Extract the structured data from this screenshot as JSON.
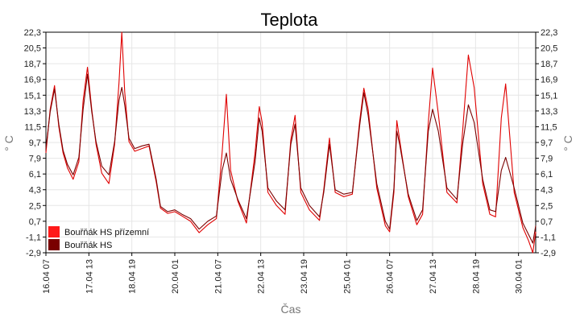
{
  "chart_data": {
    "type": "line",
    "title": "Teplota",
    "xlabel": "Čas",
    "ylabel": "° C",
    "ylabel_right": "° C",
    "ylim": [
      -2.9,
      22.3
    ],
    "yticks": [
      "22,3",
      "20,5",
      "18,7",
      "16,9",
      "15,1",
      "13,3",
      "11,5",
      "9,7",
      "7,9",
      "6,1",
      "4,3",
      "2,5",
      "0,7",
      "-1,1",
      "-2,9"
    ],
    "xlim": [
      "2013-04-16 07:00",
      "2013-04-30 13:00"
    ],
    "xticks": [
      "16.04 07",
      "17.04 13",
      "18.04 19",
      "20.04 01",
      "21.04 07",
      "22.04 13",
      "23.04 19",
      "25.04 01",
      "26.04 07",
      "27.04 13",
      "28.04 19",
      "30.04 01"
    ],
    "grid": true,
    "legend_position": "bottom-left",
    "series": [
      {
        "name": "Bouřňák HS přízemní",
        "color": "#e00000",
        "x": [
          "2013-04-16 07:00",
          "2013-04-16 10:00",
          "2013-04-16 13:00",
          "2013-04-16 16:00",
          "2013-04-16 19:00",
          "2013-04-16 22:00",
          "2013-04-17 02:00",
          "2013-04-17 06:00",
          "2013-04-17 09:00",
          "2013-04-17 12:00",
          "2013-04-17 15:00",
          "2013-04-17 18:00",
          "2013-04-17 22:00",
          "2013-04-18 03:00",
          "2013-04-18 07:00",
          "2013-04-18 10:00",
          "2013-04-18 12:00",
          "2013-04-18 14:00",
          "2013-04-18 17:00",
          "2013-04-18 21:00",
          "2013-04-19 02:00",
          "2013-04-19 07:00",
          "2013-04-19 12:00",
          "2013-04-19 15:00",
          "2013-04-19 20:00",
          "2013-04-20 01:00",
          "2013-04-20 06:00",
          "2013-04-20 12:00",
          "2013-04-20 18:00",
          "2013-04-21 00:00",
          "2013-04-21 06:00",
          "2013-04-21 10:00",
          "2013-04-21 13:00",
          "2013-04-21 16:00",
          "2013-04-21 21:00",
          "2013-04-22 03:00",
          "2013-04-22 09:00",
          "2013-04-22 12:00",
          "2013-04-22 14:00",
          "2013-04-22 18:00",
          "2013-04-23 00:00",
          "2013-04-23 06:00",
          "2013-04-23 10:00",
          "2013-04-23 13:00",
          "2013-04-23 17:00",
          "2013-04-23 23:00",
          "2013-04-24 06:00",
          "2013-04-24 09:00",
          "2013-04-24 13:00",
          "2013-04-24 17:00",
          "2013-04-24 23:00",
          "2013-04-25 05:00",
          "2013-04-25 10:00",
          "2013-04-25 13:00",
          "2013-04-25 16:00",
          "2013-04-25 22:00",
          "2013-04-26 04:00",
          "2013-04-26 07:00",
          "2013-04-26 10:00",
          "2013-04-26 12:00",
          "2013-04-26 14:00",
          "2013-04-26 20:00",
          "2013-04-27 02:00",
          "2013-04-27 06:00",
          "2013-04-27 10:00",
          "2013-04-27 13:00",
          "2013-04-27 17:00",
          "2013-04-27 23:00",
          "2013-04-28 06:00",
          "2013-04-28 10:00",
          "2013-04-28 14:00",
          "2013-04-28 18:00",
          "2013-04-29 00:00",
          "2013-04-29 05:00",
          "2013-04-29 09:00",
          "2013-04-29 13:00",
          "2013-04-29 16:00",
          "2013-04-29 22:00",
          "2013-04-30 04:00",
          "2013-04-30 08:00",
          "2013-04-30 11:00",
          "2013-04-30 13:00"
        ],
        "y": [
          8.5,
          13.5,
          16.2,
          11.5,
          8.5,
          6.8,
          5.5,
          7.5,
          14.5,
          18.3,
          13.5,
          9.5,
          6.2,
          5.0,
          9.5,
          16.5,
          22.3,
          15.5,
          9.8,
          8.7,
          9.0,
          9.3,
          5.2,
          2.2,
          1.6,
          1.8,
          1.3,
          0.7,
          -0.6,
          0.3,
          1.0,
          8.5,
          15.2,
          6.5,
          3.0,
          0.5,
          8.5,
          13.8,
          12.0,
          4.0,
          2.5,
          1.5,
          10.0,
          12.8,
          4.0,
          2.0,
          0.8,
          4.3,
          10.2,
          4.0,
          3.5,
          3.8,
          12.0,
          15.9,
          13.5,
          4.5,
          0.2,
          -0.5,
          4.0,
          12.2,
          10.0,
          3.5,
          0.3,
          1.5,
          12.0,
          18.2,
          13.0,
          4.0,
          2.8,
          11.0,
          19.7,
          16.0,
          5.0,
          1.5,
          1.2,
          12.5,
          16.4,
          4.0,
          0.0,
          -1.5,
          -2.9,
          -0.5
        ]
      },
      {
        "name": "Bouřňák HS",
        "color": "#7a0000",
        "x": [
          "2013-04-16 07:00",
          "2013-04-16 10:00",
          "2013-04-16 13:00",
          "2013-04-16 16:00",
          "2013-04-16 19:00",
          "2013-04-16 22:00",
          "2013-04-17 02:00",
          "2013-04-17 06:00",
          "2013-04-17 09:00",
          "2013-04-17 12:00",
          "2013-04-17 15:00",
          "2013-04-17 18:00",
          "2013-04-17 22:00",
          "2013-04-18 03:00",
          "2013-04-18 07:00",
          "2013-04-18 10:00",
          "2013-04-18 12:00",
          "2013-04-18 14:00",
          "2013-04-18 17:00",
          "2013-04-18 21:00",
          "2013-04-19 02:00",
          "2013-04-19 07:00",
          "2013-04-19 12:00",
          "2013-04-19 15:00",
          "2013-04-19 20:00",
          "2013-04-20 01:00",
          "2013-04-20 06:00",
          "2013-04-20 12:00",
          "2013-04-20 18:00",
          "2013-04-21 00:00",
          "2013-04-21 06:00",
          "2013-04-21 10:00",
          "2013-04-21 13:00",
          "2013-04-21 16:00",
          "2013-04-21 21:00",
          "2013-04-22 03:00",
          "2013-04-22 09:00",
          "2013-04-22 12:00",
          "2013-04-22 14:00",
          "2013-04-22 18:00",
          "2013-04-23 00:00",
          "2013-04-23 06:00",
          "2013-04-23 10:00",
          "2013-04-23 13:00",
          "2013-04-23 17:00",
          "2013-04-23 23:00",
          "2013-04-24 06:00",
          "2013-04-24 09:00",
          "2013-04-24 13:00",
          "2013-04-24 17:00",
          "2013-04-24 23:00",
          "2013-04-25 05:00",
          "2013-04-25 10:00",
          "2013-04-25 13:00",
          "2013-04-25 16:00",
          "2013-04-25 22:00",
          "2013-04-26 04:00",
          "2013-04-26 07:00",
          "2013-04-26 10:00",
          "2013-04-26 12:00",
          "2013-04-26 14:00",
          "2013-04-26 20:00",
          "2013-04-27 02:00",
          "2013-04-27 06:00",
          "2013-04-27 10:00",
          "2013-04-27 13:00",
          "2013-04-27 17:00",
          "2013-04-27 23:00",
          "2013-04-28 06:00",
          "2013-04-28 10:00",
          "2013-04-28 14:00",
          "2013-04-28 18:00",
          "2013-04-29 00:00",
          "2013-04-29 05:00",
          "2013-04-29 09:00",
          "2013-04-29 13:00",
          "2013-04-29 16:00",
          "2013-04-29 22:00",
          "2013-04-30 04:00",
          "2013-04-30 08:00",
          "2013-04-30 11:00",
          "2013-04-30 13:00"
        ],
        "y": [
          9.0,
          13.2,
          15.8,
          11.8,
          8.8,
          7.2,
          6.0,
          8.0,
          13.5,
          17.5,
          13.2,
          9.8,
          7.0,
          6.0,
          9.8,
          14.5,
          16.0,
          14.0,
          10.2,
          9.0,
          9.3,
          9.5,
          5.5,
          2.4,
          1.8,
          2.0,
          1.5,
          1.0,
          -0.2,
          0.7,
          1.3,
          6.5,
          8.5,
          5.5,
          3.2,
          1.0,
          7.5,
          12.5,
          11.0,
          4.5,
          3.0,
          2.0,
          9.5,
          11.8,
          4.5,
          2.5,
          1.2,
          4.0,
          9.5,
          4.3,
          3.8,
          4.0,
          11.5,
          15.4,
          12.8,
          5.0,
          0.7,
          -0.2,
          4.5,
          11.0,
          9.5,
          3.8,
          0.8,
          2.0,
          11.0,
          13.5,
          11.0,
          4.5,
          3.2,
          9.5,
          14.0,
          12.0,
          5.5,
          2.0,
          1.8,
          6.5,
          8.0,
          4.5,
          0.5,
          -0.8,
          -1.8,
          0.2
        ]
      }
    ]
  }
}
